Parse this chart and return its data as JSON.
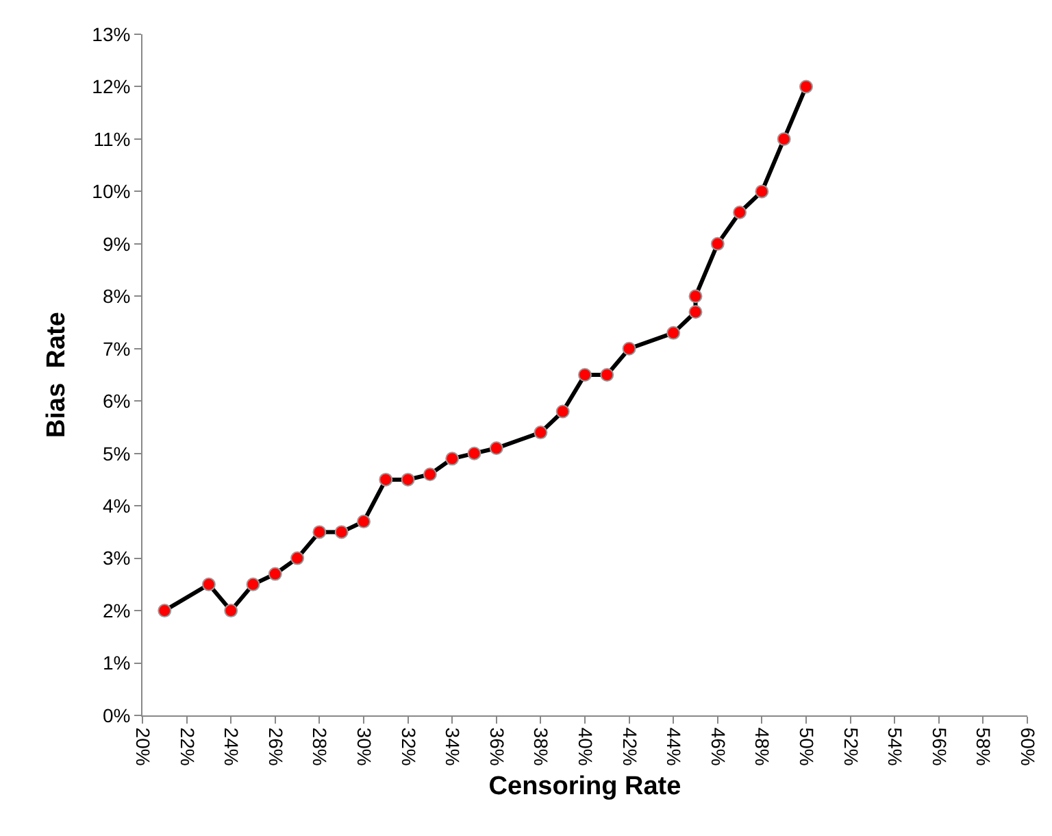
{
  "chart_data": {
    "type": "line",
    "xlabel": "Censoring Rate",
    "ylabel": "Bias  Rate",
    "x": [
      21,
      23,
      24,
      25,
      26,
      27,
      28,
      29,
      30,
      31,
      32,
      33,
      34,
      35,
      36,
      38,
      39,
      40,
      41,
      42,
      44,
      45,
      45,
      46,
      47,
      48,
      49,
      50
    ],
    "series": [
      {
        "color": "#000000",
        "colors": [
          "#ff0000",
          "#ff0000",
          "#ff0000",
          "#ff0000",
          "#ff0000",
          "#ff0000",
          "#ff0000",
          "#ff0000",
          "#ff0000",
          "#ff0000",
          "#ff0000",
          "#ff0000",
          "#ff0000",
          "#ff0000",
          "#ff0000",
          "#ff0000",
          "#ff0000",
          "#ff0000",
          "#ff0000",
          "#ff0000",
          "#ff0000",
          "#ff0000",
          "#ff0000",
          "#ff0000",
          "#ff0000",
          "#ff0000",
          "#ff0000",
          "#ff0000"
        ],
        "values": [
          2.0,
          2.5,
          2.0,
          2.5,
          2.7,
          3.0,
          3.5,
          3.5,
          3.7,
          4.5,
          4.5,
          4.6,
          4.9,
          5.0,
          5.1,
          5.4,
          5.8,
          6.5,
          6.5,
          7.0,
          7.3,
          7.7,
          8.0,
          9.0,
          9.6,
          10.0,
          11.0,
          12.0
        ]
      }
    ],
    "xlim": [
      20,
      60
    ],
    "xticks": [
      {
        "value": 20,
        "label": "20%"
      },
      {
        "value": 22,
        "label": "22%"
      },
      {
        "value": 24,
        "label": "24%"
      },
      {
        "value": 26,
        "label": "26%"
      },
      {
        "value": 28,
        "label": "28%"
      },
      {
        "value": 30,
        "label": "30%"
      },
      {
        "value": 32,
        "label": "32%"
      },
      {
        "value": 34,
        "label": "34%"
      },
      {
        "value": 36,
        "label": "36%"
      },
      {
        "value": 38,
        "label": "38%"
      },
      {
        "value": 40,
        "label": "40%"
      },
      {
        "value": 42,
        "label": "42%"
      },
      {
        "value": 44,
        "label": "44%"
      },
      {
        "value": 46,
        "label": "46%"
      },
      {
        "value": 48,
        "label": "48%"
      },
      {
        "value": 50,
        "label": "50%"
      },
      {
        "value": 52,
        "label": "52%"
      },
      {
        "value": 54,
        "label": "54%"
      },
      {
        "value": 56,
        "label": "56%"
      },
      {
        "value": 58,
        "label": "58%"
      },
      {
        "value": 60,
        "label": "60%"
      }
    ],
    "ylim": [
      0,
      13
    ],
    "yticks": [
      {
        "value": 0,
        "label": "0%"
      },
      {
        "value": 1,
        "label": "1%"
      },
      {
        "value": 2,
        "label": "2%"
      },
      {
        "value": 3,
        "label": "3%"
      },
      {
        "value": 4,
        "label": "4%"
      },
      {
        "value": 5,
        "label": "5%"
      },
      {
        "value": 6,
        "label": "6%"
      },
      {
        "value": 7,
        "label": "7%"
      },
      {
        "value": 8,
        "label": "8%"
      },
      {
        "value": 9,
        "label": "9%"
      },
      {
        "value": 10,
        "label": "10%"
      },
      {
        "value": 11,
        "label": "11%"
      },
      {
        "value": 12,
        "label": "12%"
      },
      {
        "value": 13,
        "label": "13%"
      }
    ],
    "grid": false,
    "legend": false,
    "marker": "circle",
    "line_style": "solid"
  }
}
